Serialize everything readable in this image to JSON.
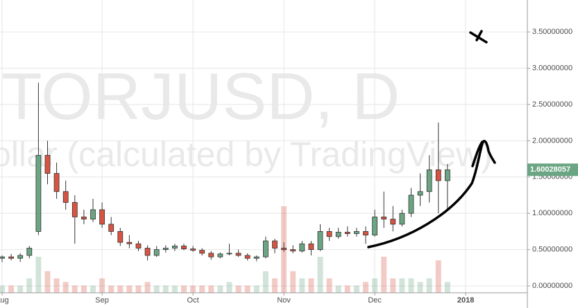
{
  "chart_data": {
    "type": "candlestick",
    "watermark": "STORJUSD, D",
    "watermark_subtitle": "Dollar (calculated by TradingView)",
    "categories": [
      "Aug",
      null,
      null,
      null,
      null,
      null,
      null,
      null,
      null,
      null,
      null,
      "Sep",
      null,
      null,
      null,
      null,
      null,
      null,
      null,
      null,
      null,
      "Oct",
      null,
      null,
      null,
      null,
      null,
      null,
      null,
      null,
      null,
      "Nov",
      null,
      null,
      null,
      null,
      null,
      null,
      null,
      null,
      null,
      "Dec",
      null,
      null,
      null,
      null,
      null,
      null,
      null,
      null,
      null,
      "2018"
    ],
    "open": [
      0.38,
      0.4,
      0.38,
      0.42,
      0.75,
      1.8,
      1.55,
      1.3,
      1.15,
      0.95,
      0.92,
      1.05,
      0.85,
      0.75,
      0.6,
      0.58,
      0.52,
      0.42,
      0.5,
      0.52,
      0.55,
      0.51,
      0.49,
      0.45,
      0.4,
      0.44,
      0.45,
      0.42,
      0.38,
      0.4,
      0.62,
      0.52,
      0.5,
      0.48,
      0.58,
      0.5,
      0.75,
      0.68,
      0.74,
      0.72,
      0.75,
      0.7,
      0.95,
      0.92,
      0.85,
      1.0,
      1.25,
      1.3,
      1.6,
      1.45,
      null,
      null
    ],
    "high": [
      0.42,
      0.44,
      0.45,
      0.55,
      2.8,
      2.0,
      1.7,
      1.45,
      1.25,
      1.05,
      1.2,
      1.15,
      0.95,
      0.8,
      0.7,
      0.62,
      0.56,
      0.55,
      0.56,
      0.58,
      0.58,
      0.55,
      0.52,
      0.48,
      0.46,
      0.58,
      0.5,
      0.45,
      0.42,
      0.68,
      0.65,
      0.6,
      0.56,
      0.62,
      0.62,
      0.85,
      0.8,
      0.8,
      0.82,
      0.8,
      0.82,
      1.05,
      1.3,
      1.1,
      1.05,
      1.35,
      1.55,
      1.8,
      2.25,
      1.68,
      null,
      null
    ],
    "low": [
      0.33,
      0.35,
      0.33,
      0.38,
      0.7,
      1.4,
      1.2,
      1.05,
      0.58,
      0.85,
      0.88,
      0.8,
      0.7,
      0.55,
      0.52,
      0.48,
      0.35,
      0.4,
      0.46,
      0.48,
      0.49,
      0.47,
      0.42,
      0.36,
      0.38,
      0.42,
      0.4,
      0.35,
      0.34,
      0.38,
      0.45,
      0.47,
      0.45,
      0.46,
      0.42,
      0.48,
      0.62,
      0.65,
      0.68,
      0.68,
      0.58,
      0.68,
      0.8,
      0.75,
      0.82,
      0.95,
      1.1,
      1.15,
      1.0,
      1.05,
      null,
      null
    ],
    "close": [
      0.4,
      0.38,
      0.42,
      0.52,
      1.8,
      1.55,
      1.3,
      1.15,
      0.95,
      0.92,
      1.05,
      0.85,
      0.75,
      0.6,
      0.58,
      0.52,
      0.42,
      0.5,
      0.52,
      0.55,
      0.51,
      0.49,
      0.45,
      0.4,
      0.44,
      0.45,
      0.42,
      0.38,
      0.4,
      0.62,
      0.52,
      0.5,
      0.48,
      0.58,
      0.5,
      0.75,
      0.68,
      0.74,
      0.72,
      0.75,
      0.7,
      0.95,
      0.92,
      0.85,
      1.0,
      1.25,
      1.3,
      1.6,
      1.45,
      1.60028057,
      null,
      null
    ],
    "volume": [
      1,
      1,
      1,
      2,
      5,
      3,
      2,
      1.5,
      1,
      1,
      1,
      2,
      1,
      1,
      1,
      1,
      1.5,
      1,
      1,
      1,
      1,
      1,
      1,
      1,
      1,
      1.5,
      1,
      1,
      1,
      3,
      2,
      12,
      3,
      2,
      2,
      5,
      2,
      1,
      1,
      1,
      1.5,
      2,
      5,
      2,
      2,
      2,
      1.5,
      2,
      4.5,
      1.5,
      null,
      null
    ],
    "up_color": "#6ba583",
    "down_color": "#d75442",
    "ylim": [
      -0.095,
      3.94
    ],
    "yticks": [
      {
        "value": 0,
        "label": "0.00000000"
      },
      {
        "value": 0.5,
        "label": "0.50000000"
      },
      {
        "value": 1,
        "label": "1.00000000"
      },
      {
        "value": 1.5,
        "label": "1.50000000"
      },
      {
        "value": 2,
        "label": "2.00000000"
      },
      {
        "value": 2.5,
        "label": "2.50000000"
      },
      {
        "value": 3,
        "label": "3.00000000"
      },
      {
        "value": 3.5,
        "label": "3.50000000"
      }
    ],
    "grid": true
  }
}
